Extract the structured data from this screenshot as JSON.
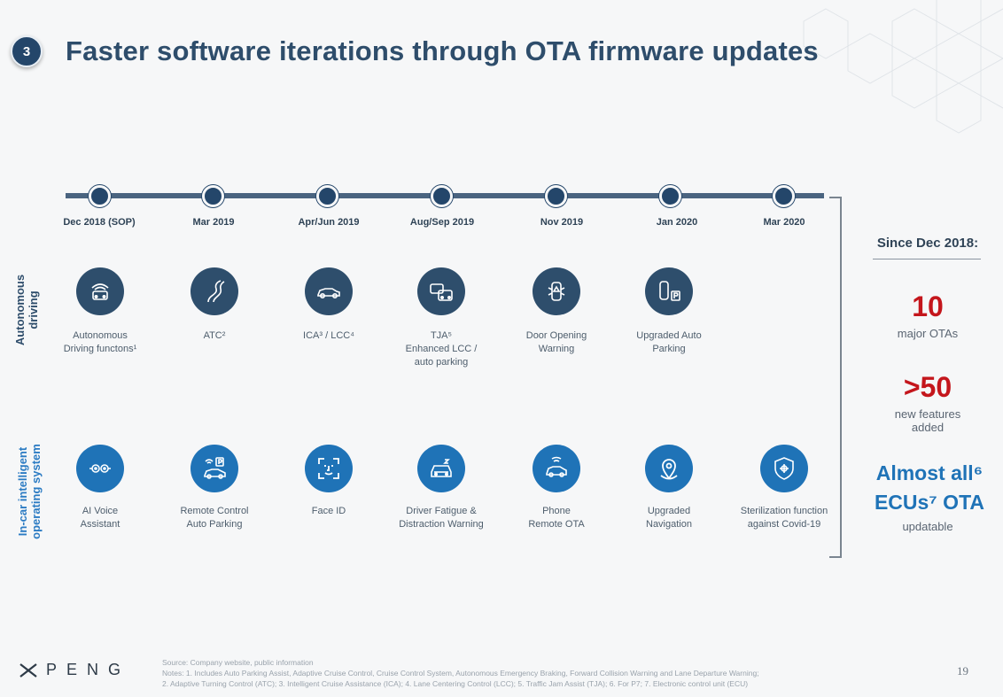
{
  "section_number": "3",
  "title": "Faster software iterations through OTA firmware updates",
  "timeline": {
    "dates": [
      "Dec 2018 (SOP)",
      "Mar 2019",
      "Apr/Jun 2019",
      "Aug/Sep 2019",
      "Nov 2019",
      "Jan 2020",
      "Mar 2020"
    ]
  },
  "rows": {
    "autonomous": {
      "label_line1": "Autonomous",
      "label_line2": "driving",
      "items": [
        {
          "line1": "Autonomous",
          "line2": "Driving functons¹",
          "line3": "",
          "icon": "autonomous-car-icon"
        },
        {
          "line1": "ATC²",
          "line2": "",
          "line3": "",
          "icon": "winding-road-icon"
        },
        {
          "line1": "ICA³ / LCC⁴",
          "line2": "",
          "line3": "",
          "icon": "car-side-icon"
        },
        {
          "line1": "TJA⁵",
          "line2": "Enhanced LCC /",
          "line3": "auto parking",
          "icon": "traffic-jam-icon"
        },
        {
          "line1": "Door Opening",
          "line2": "Warning",
          "line3": "",
          "icon": "door-warning-icon"
        },
        {
          "line1": "Upgraded Auto",
          "line2": "Parking",
          "line3": "",
          "icon": "auto-parking-icon"
        }
      ]
    },
    "incar": {
      "label_line1": "In-car intelligent",
      "label_line2": "operating system",
      "items": [
        {
          "line1": "AI Voice",
          "line2": "Assistant",
          "icon": "voice-assistant-icon"
        },
        {
          "line1": "Remote Control",
          "line2": "Auto Parking",
          "icon": "remote-parking-icon"
        },
        {
          "line1": "Face ID",
          "line2": "",
          "icon": "face-id-icon"
        },
        {
          "line1": "Driver Fatigue &",
          "line2": "Distraction Warning",
          "icon": "driver-fatigue-icon"
        },
        {
          "line1": "Phone",
          "line2": "Remote OTA",
          "icon": "phone-ota-icon"
        },
        {
          "line1": "Upgraded",
          "line2": "Navigation",
          "icon": "navigation-pin-icon"
        },
        {
          "line1": "Sterilization function",
          "line2": "against Covid-19",
          "icon": "sterilization-shield-icon"
        }
      ]
    }
  },
  "summary": {
    "heading": "Since Dec 2018:",
    "otas_value": "10",
    "otas_label": "major OTAs",
    "features_value": ">50",
    "features_label_1": "new features",
    "features_label_2": "added",
    "ecu_line1": "Almost all⁶",
    "ecu_line2": "ECUs⁷ OTA",
    "ecu_label": "updatable"
  },
  "logo_text": "PENG",
  "footnotes": {
    "source": "Source: Company website, public information",
    "notes1": "Notes: 1. Includes Auto Parking Assist, Adaptive Cruise Control, Cruise Control System, Autonomous Emergency Braking, Forward Collision Warning and Lane Departure Warning;",
    "notes2": "2. Adaptive Turning Control (ATC); 3. Intelligent Cruise Assistance (ICA); 4. Lane Centering Control (LCC); 5. Traffic Jam Assist (TJA); 6. For P7; 7. Electronic control unit (ECU)"
  },
  "page_number": "19",
  "colors": {
    "navy": "#24466a",
    "dark_icon": "#2e4e6c",
    "blue_icon": "#1f73b7",
    "red": "#c4161c"
  }
}
